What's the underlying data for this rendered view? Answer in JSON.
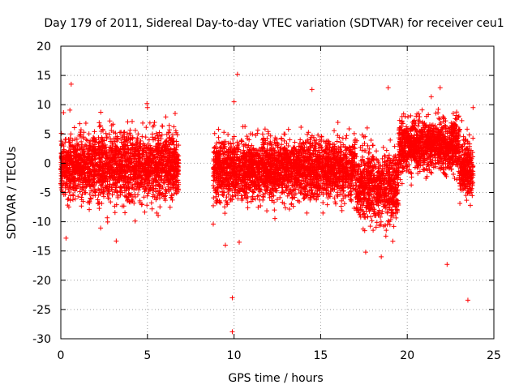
{
  "chart_data": {
    "type": "scatter",
    "title": "Day 179 of 2011, Sidereal Day-to-day VTEC variation (SDTVAR) for receiver ceu1",
    "xlabel": "GPS time / hours",
    "ylabel": "SDTVAR / TECUs",
    "xlim": [
      0,
      25
    ],
    "ylim": [
      -30,
      20
    ],
    "xticks": [
      0,
      5,
      10,
      15,
      20,
      25
    ],
    "yticks": [
      -30,
      -25,
      -20,
      -15,
      -10,
      -5,
      0,
      5,
      10,
      15,
      20
    ],
    "grid": true,
    "marker": "+",
    "series": [
      {
        "name": "SDTVAR",
        "color": "#ff0000",
        "segments": [
          {
            "x_start": 0.0,
            "x_end": 6.8,
            "center": -0.5,
            "spread": 4.5
          },
          {
            "x_start": 8.8,
            "x_end": 23.8,
            "center": -1.0,
            "spread": 4.0
          }
        ],
        "outliers": [
          {
            "x": 0.6,
            "y": 13.5
          },
          {
            "x": 0.3,
            "y": -12.8
          },
          {
            "x": 3.2,
            "y": -13.3
          },
          {
            "x": 5.0,
            "y": 9.5
          },
          {
            "x": 6.6,
            "y": 8.5
          },
          {
            "x": 8.8,
            "y": -10.4
          },
          {
            "x": 9.5,
            "y": -14.0
          },
          {
            "x": 9.9,
            "y": -23.0
          },
          {
            "x": 9.9,
            "y": -28.8
          },
          {
            "x": 10.2,
            "y": 15.2
          },
          {
            "x": 10.0,
            "y": 10.5
          },
          {
            "x": 10.3,
            "y": -13.5
          },
          {
            "x": 14.5,
            "y": 12.6
          },
          {
            "x": 18.9,
            "y": 12.9
          },
          {
            "x": 21.9,
            "y": 12.9
          },
          {
            "x": 22.3,
            "y": -17.3
          },
          {
            "x": 23.5,
            "y": -23.4
          },
          {
            "x": 23.8,
            "y": 9.5
          },
          {
            "x": 17.6,
            "y": -15.2
          },
          {
            "x": 18.5,
            "y": -16.0
          }
        ]
      }
    ]
  }
}
